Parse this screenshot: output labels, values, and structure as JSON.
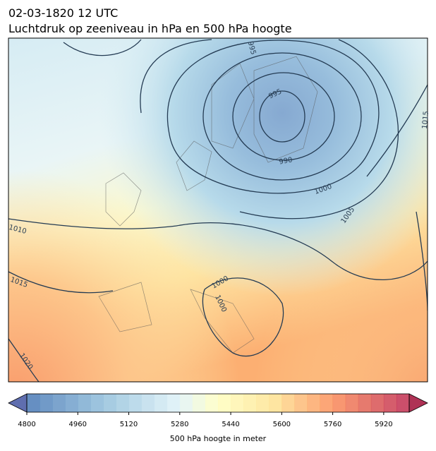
{
  "header": {
    "title": "02-03-1820 12 UTC",
    "subtitle": "Luchtdruk op zeeniveau in hPa en 500 hPa hoogte"
  },
  "contour_labels": [
    "995",
    "995",
    "990",
    "1000",
    "1005",
    "1010",
    "1015",
    "1020",
    "1015",
    "1000",
    "1000"
  ],
  "colorbar": {
    "label": "500 hPa hoogte in meter",
    "lim": [
      4800,
      6000
    ],
    "step": 40,
    "ticks": [
      4800,
      4960,
      5120,
      5280,
      5440,
      5600,
      5760,
      5920
    ]
  }
}
